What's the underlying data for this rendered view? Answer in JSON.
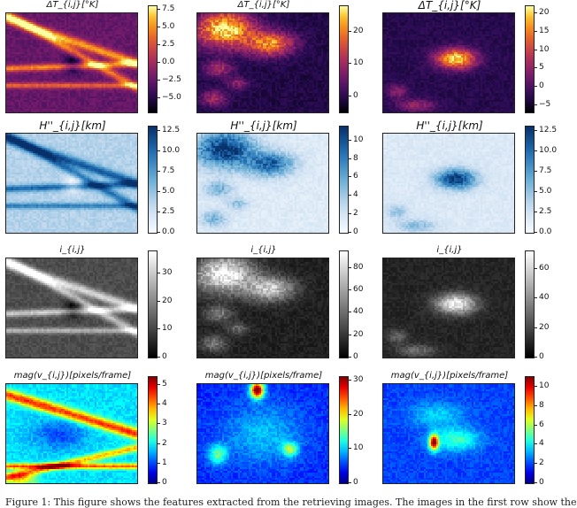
{
  "rows": [
    {
      "kind": "inferno",
      "panels": [
        {
          "title": "ΔT_{i,j}[°K]",
          "size": "small",
          "ticks": [
            "7.5",
            "5.0",
            "2.5",
            "0.0",
            "−2.5",
            "−5.0"
          ],
          "tick_values": [
            7.5,
            5.0,
            2.5,
            0.0,
            -2.5,
            -5.0
          ],
          "range": [
            -7,
            8
          ],
          "pattern": "streaks"
        },
        {
          "title": "ΔT_{i,j}[°K]",
          "size": "small",
          "ticks": [
            "20",
            "10",
            "0"
          ],
          "tick_values": [
            20,
            10,
            0
          ],
          "range": [
            -5,
            28
          ],
          "pattern": "cloud-top"
        },
        {
          "title": "ΔT_{i,j}[°K]",
          "size": "big",
          "ticks": [
            "20",
            "15",
            "10",
            "5",
            "0",
            "−5"
          ],
          "tick_values": [
            20,
            15,
            10,
            5,
            0,
            -5
          ],
          "range": [
            -7,
            22
          ],
          "pattern": "cloud-center"
        }
      ]
    },
    {
      "kind": "blues",
      "panels": [
        {
          "title": "H''_{i,j}[km]",
          "size": "big",
          "ticks": [
            "12.5",
            "10.0",
            "7.5",
            "5.0",
            "2.5",
            "0.0"
          ],
          "tick_values": [
            12.5,
            10,
            7.5,
            5,
            2.5,
            0
          ],
          "range": [
            0,
            13
          ],
          "pattern": "streaks"
        },
        {
          "title": "H''_{i,j}[km]",
          "size": "big",
          "ticks": [
            "10",
            "8",
            "6",
            "4",
            "2",
            "0"
          ],
          "tick_values": [
            10,
            8,
            6,
            4,
            2,
            0
          ],
          "range": [
            0,
            11.5
          ],
          "pattern": "cloud-top"
        },
        {
          "title": "H''_{i,j}[km]",
          "size": "big",
          "ticks": [
            "12.5",
            "10.0",
            "7.5",
            "5.0",
            "2.5",
            "0.0"
          ],
          "tick_values": [
            12.5,
            10,
            7.5,
            5,
            2.5,
            0
          ],
          "range": [
            0,
            13
          ],
          "pattern": "cloud-center"
        }
      ]
    },
    {
      "kind": "gray",
      "panels": [
        {
          "title": "i_{i,j}",
          "size": "small",
          "ticks": [
            "30",
            "20",
            "10",
            "0"
          ],
          "tick_values": [
            30,
            20,
            10,
            0
          ],
          "range": [
            0,
            38
          ],
          "pattern": "streaks"
        },
        {
          "title": "i_{i,j}",
          "size": "small",
          "ticks": [
            "80",
            "60",
            "40",
            "20",
            "0"
          ],
          "tick_values": [
            80,
            60,
            40,
            20,
            0
          ],
          "range": [
            0,
            95
          ],
          "pattern": "cloud-top"
        },
        {
          "title": "i_{i,j}",
          "size": "small",
          "ticks": [
            "60",
            "40",
            "20",
            "0"
          ],
          "tick_values": [
            60,
            40,
            20,
            0
          ],
          "range": [
            0,
            72
          ],
          "pattern": "cloud-center"
        }
      ]
    },
    {
      "kind": "jet",
      "panels": [
        {
          "title": "mag(v_{i,j})[pixels/frame]",
          "size": "small",
          "ticks": [
            "5",
            "4",
            "3",
            "2",
            "1",
            "0"
          ],
          "tick_values": [
            5,
            4,
            3,
            2,
            1,
            0
          ],
          "range": [
            0,
            5.4
          ],
          "pattern": "flow-streaks"
        },
        {
          "title": "mag(v_{i,j})[pixels/frame]",
          "size": "small",
          "ticks": [
            "30",
            "20",
            "10",
            "0"
          ],
          "tick_values": [
            30,
            20,
            10,
            0
          ],
          "range": [
            0,
            31
          ],
          "pattern": "flow-top"
        },
        {
          "title": "mag(v_{i,j})[pixels/frame]",
          "size": "small",
          "ticks": [
            "10",
            "8",
            "6",
            "4",
            "2",
            "0"
          ],
          "tick_values": [
            10,
            8,
            6,
            4,
            2,
            0
          ],
          "range": [
            0,
            11
          ],
          "pattern": "flow-center"
        }
      ]
    }
  ],
  "caption": "Figure 1: This figure shows the features extracted from the retrieving images. The images in the first row show the"
}
